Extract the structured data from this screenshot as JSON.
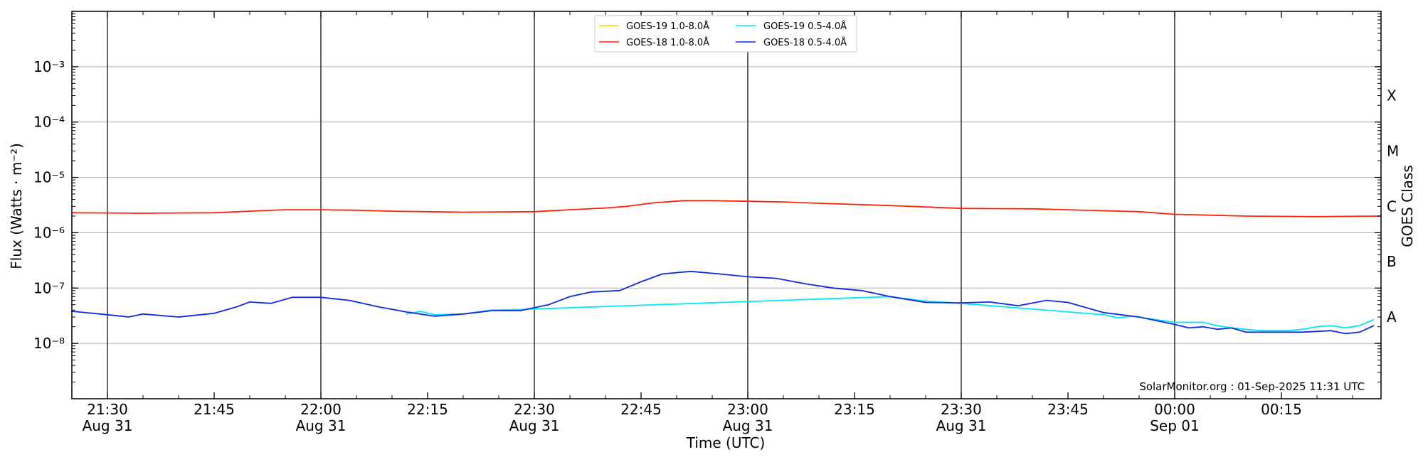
{
  "chart_data": {
    "type": "line",
    "title": "",
    "xlabel": "Time (UTC)",
    "ylabel": "Flux (Watts · m⁻²)",
    "y2label": "GOES Class",
    "yscale": "log",
    "ylim": [
      1e-09,
      0.01
    ],
    "xlim": [
      "2025-08-31 21:25",
      "2025-09-01 00:29"
    ],
    "grid": "horizontal at decades",
    "legend_position": "top-center",
    "ytick_labels": [
      {
        "value": 0.001,
        "label": "10⁻³"
      },
      {
        "value": 0.0001,
        "label": "10⁻⁴"
      },
      {
        "value": 1e-05,
        "label": "10⁻⁵"
      },
      {
        "value": 1e-06,
        "label": "10⁻⁶"
      },
      {
        "value": 1e-07,
        "label": "10⁻⁷"
      },
      {
        "value": 1e-08,
        "label": "10⁻⁸"
      }
    ],
    "xtick_labels": [
      {
        "time": "2025-08-31 21:30",
        "line1": "21:30",
        "line2": "Aug 31"
      },
      {
        "time": "2025-08-31 21:45",
        "line1": "21:45",
        "line2": ""
      },
      {
        "time": "2025-08-31 22:00",
        "line1": "22:00",
        "line2": "Aug 31"
      },
      {
        "time": "2025-08-31 22:15",
        "line1": "22:15",
        "line2": ""
      },
      {
        "time": "2025-08-31 22:30",
        "line1": "22:30",
        "line2": "Aug 31"
      },
      {
        "time": "2025-08-31 22:45",
        "line1": "22:45",
        "line2": ""
      },
      {
        "time": "2025-08-31 23:00",
        "line1": "23:00",
        "line2": "Aug 31"
      },
      {
        "time": "2025-08-31 23:15",
        "line1": "23:15",
        "line2": ""
      },
      {
        "time": "2025-08-31 23:30",
        "line1": "23:30",
        "line2": "Aug 31"
      },
      {
        "time": "2025-08-31 23:45",
        "line1": "23:45",
        "line2": ""
      },
      {
        "time": "2025-09-01 00:00",
        "line1": "00:00",
        "line2": "Sep 01"
      },
      {
        "time": "2025-09-01 00:15",
        "line1": "00:15",
        "line2": ""
      }
    ],
    "vertical_lines": [
      "2025-08-31 21:30",
      "2025-08-31 22:00",
      "2025-08-31 22:30",
      "2025-08-31 23:00",
      "2025-08-31 23:30",
      "2025-09-01 00:00"
    ],
    "class_labels": [
      {
        "letter": "X",
        "value": 0.0003
      },
      {
        "letter": "M",
        "value": 3e-05
      },
      {
        "letter": "C",
        "value": 3e-06
      },
      {
        "letter": "B",
        "value": 3e-07
      },
      {
        "letter": "A",
        "value": 3e-08
      }
    ],
    "annotation": "SolarMonitor.org : 01-Sep-2025 11:31 UTC",
    "series": [
      {
        "name": "GOES-19 1.0-8.0Å",
        "color": "#ffd700",
        "points": []
      },
      {
        "name": "GOES-19 0.5-4.0Å",
        "color": "#00e5ff",
        "points": [
          [
            "2025-08-31 22:12",
            3.4e-08
          ],
          [
            "2025-08-31 22:14",
            3.8e-08
          ],
          [
            "2025-08-31 22:16",
            3.3e-08
          ],
          [
            "2025-08-31 22:20",
            3.4e-08
          ],
          [
            "2025-08-31 22:24",
            4e-08
          ],
          [
            "2025-08-31 22:28",
            4.1e-08
          ],
          [
            "2025-08-31 23:20",
            7e-08
          ],
          [
            "2025-08-31 23:25",
            5.8e-08
          ],
          [
            "2025-08-31 23:30",
            5.3e-08
          ],
          [
            "2025-08-31 23:50",
            3.3e-08
          ],
          [
            "2025-08-31 23:52",
            2.9e-08
          ],
          [
            "2025-08-31 23:54",
            3.1e-08
          ],
          [
            "2025-09-01 00:00",
            2.4e-08
          ],
          [
            "2025-09-01 00:02",
            2.4e-08
          ],
          [
            "2025-09-01 00:04",
            2.4e-08
          ],
          [
            "2025-09-01 00:06",
            2.1e-08
          ],
          [
            "2025-09-01 00:08",
            1.9e-08
          ],
          [
            "2025-09-01 00:10",
            1.8e-08
          ],
          [
            "2025-09-01 00:12",
            1.7e-08
          ],
          [
            "2025-09-01 00:14",
            1.7e-08
          ],
          [
            "2025-09-01 00:16",
            1.7e-08
          ],
          [
            "2025-09-01 00:18",
            1.8e-08
          ],
          [
            "2025-09-01 00:20",
            2e-08
          ],
          [
            "2025-09-01 00:22",
            2.1e-08
          ],
          [
            "2025-09-01 00:24",
            1.9e-08
          ],
          [
            "2025-09-01 00:26",
            2.1e-08
          ],
          [
            "2025-09-01 00:28",
            2.7e-08
          ]
        ]
      },
      {
        "name": "GOES-18 1.0-8.0Å",
        "color": "#ff2200",
        "points": [
          [
            "2025-08-31 21:25",
            2.3e-06
          ],
          [
            "2025-08-31 21:35",
            2.25e-06
          ],
          [
            "2025-08-31 21:45",
            2.3e-06
          ],
          [
            "2025-08-31 21:50",
            2.45e-06
          ],
          [
            "2025-08-31 21:55",
            2.6e-06
          ],
          [
            "2025-08-31 22:00",
            2.6e-06
          ],
          [
            "2025-08-31 22:05",
            2.55e-06
          ],
          [
            "2025-08-31 22:10",
            2.45e-06
          ],
          [
            "2025-08-31 22:20",
            2.35e-06
          ],
          [
            "2025-08-31 22:30",
            2.4e-06
          ],
          [
            "2025-08-31 22:35",
            2.6e-06
          ],
          [
            "2025-08-31 22:40",
            2.8e-06
          ],
          [
            "2025-08-31 22:43",
            3e-06
          ],
          [
            "2025-08-31 22:47",
            3.5e-06
          ],
          [
            "2025-08-31 22:51",
            3.8e-06
          ],
          [
            "2025-08-31 22:55",
            3.8e-06
          ],
          [
            "2025-08-31 23:00",
            3.7e-06
          ],
          [
            "2025-08-31 23:05",
            3.6e-06
          ],
          [
            "2025-08-31 23:10",
            3.4e-06
          ],
          [
            "2025-08-31 23:20",
            3.1e-06
          ],
          [
            "2025-08-31 23:30",
            2.75e-06
          ],
          [
            "2025-08-31 23:40",
            2.7e-06
          ],
          [
            "2025-08-31 23:45",
            2.6e-06
          ],
          [
            "2025-08-31 23:55",
            2.4e-06
          ],
          [
            "2025-09-01 00:00",
            2.15e-06
          ],
          [
            "2025-09-01 00:10",
            2e-06
          ],
          [
            "2025-09-01 00:20",
            1.95e-06
          ],
          [
            "2025-09-01 00:29",
            2e-06
          ]
        ]
      },
      {
        "name": "GOES-18 0.5-4.0Å",
        "color": "#0a2be0",
        "points": [
          [
            "2025-08-31 21:25",
            3.8e-08
          ],
          [
            "2025-08-31 21:28",
            3.5e-08
          ],
          [
            "2025-08-31 21:31",
            3.2e-08
          ],
          [
            "2025-08-31 21:33",
            3e-08
          ],
          [
            "2025-08-31 21:35",
            3.4e-08
          ],
          [
            "2025-08-31 21:40",
            3e-08
          ],
          [
            "2025-08-31 21:45",
            3.5e-08
          ],
          [
            "2025-08-31 21:48",
            4.5e-08
          ],
          [
            "2025-08-31 21:50",
            5.6e-08
          ],
          [
            "2025-08-31 21:53",
            5.3e-08
          ],
          [
            "2025-08-31 21:56",
            6.8e-08
          ],
          [
            "2025-08-31 22:00",
            6.8e-08
          ],
          [
            "2025-08-31 22:04",
            6e-08
          ],
          [
            "2025-08-31 22:08",
            4.6e-08
          ],
          [
            "2025-08-31 22:12",
            3.7e-08
          ],
          [
            "2025-08-31 22:16",
            3.1e-08
          ],
          [
            "2025-08-31 22:20",
            3.4e-08
          ],
          [
            "2025-08-31 22:24",
            3.9e-08
          ],
          [
            "2025-08-31 22:28",
            3.9e-08
          ],
          [
            "2025-08-31 22:32",
            5e-08
          ],
          [
            "2025-08-31 22:35",
            7e-08
          ],
          [
            "2025-08-31 22:38",
            8.5e-08
          ],
          [
            "2025-08-31 22:42",
            9e-08
          ],
          [
            "2025-08-31 22:45",
            1.3e-07
          ],
          [
            "2025-08-31 22:48",
            1.8e-07
          ],
          [
            "2025-08-31 22:52",
            2e-07
          ],
          [
            "2025-08-31 22:56",
            1.8e-07
          ],
          [
            "2025-08-31 23:00",
            1.6e-07
          ],
          [
            "2025-08-31 23:04",
            1.5e-07
          ],
          [
            "2025-08-31 23:08",
            1.2e-07
          ],
          [
            "2025-08-31 23:12",
            1e-07
          ],
          [
            "2025-08-31 23:16",
            9e-08
          ],
          [
            "2025-08-31 23:20",
            7e-08
          ],
          [
            "2025-08-31 23:25",
            5.5e-08
          ],
          [
            "2025-08-31 23:30",
            5.4e-08
          ],
          [
            "2025-08-31 23:34",
            5.6e-08
          ],
          [
            "2025-08-31 23:38",
            4.8e-08
          ],
          [
            "2025-08-31 23:42",
            6e-08
          ],
          [
            "2025-08-31 23:45",
            5.5e-08
          ],
          [
            "2025-08-31 23:50",
            3.6e-08
          ],
          [
            "2025-08-31 23:55",
            3e-08
          ],
          [
            "2025-09-01 00:00",
            2.2e-08
          ],
          [
            "2025-09-01 00:02",
            1.9e-08
          ],
          [
            "2025-09-01 00:04",
            2e-08
          ],
          [
            "2025-09-01 00:06",
            1.8e-08
          ],
          [
            "2025-09-01 00:08",
            1.9e-08
          ],
          [
            "2025-09-01 00:10",
            1.6e-08
          ],
          [
            "2025-09-01 00:14",
            1.6e-08
          ],
          [
            "2025-09-01 00:18",
            1.6e-08
          ],
          [
            "2025-09-01 00:22",
            1.7e-08
          ],
          [
            "2025-09-01 00:24",
            1.5e-08
          ],
          [
            "2025-09-01 00:26",
            1.6e-08
          ],
          [
            "2025-09-01 00:28",
            2.1e-08
          ]
        ]
      }
    ]
  }
}
